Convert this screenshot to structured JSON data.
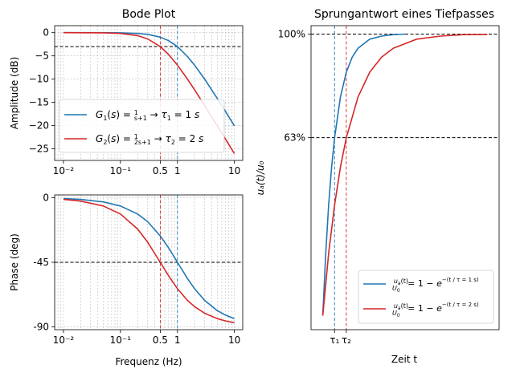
{
  "chart_data": [
    {
      "id": "amp",
      "type": "line",
      "title": "Bode Plot",
      "xlabel": "",
      "ylabel": "Amplitude (dB)",
      "xscale": "log",
      "xlim": [
        0.007,
        14
      ],
      "ylim": [
        -27.5,
        1.5
      ],
      "xtick_labels": [
        {
          "v": 0.01,
          "label": "10⁻²"
        },
        {
          "v": 0.1,
          "label": "10⁻¹"
        },
        {
          "v": 0.5,
          "label": "0.5"
        },
        {
          "v": 1,
          "label": "1"
        },
        {
          "v": 10,
          "label": "10"
        }
      ],
      "ytick_labels": [
        {
          "v": 0,
          "label": "0"
        },
        {
          "v": -5,
          "label": "−5"
        },
        {
          "v": -10,
          "label": "−10"
        },
        {
          "v": -15,
          "label": "−15"
        },
        {
          "v": -20,
          "label": "−20"
        },
        {
          "v": -25,
          "label": "−25"
        }
      ],
      "grid": true,
      "hlines": [
        {
          "y": -3,
          "color": "#000000"
        }
      ],
      "vlines": [
        {
          "x": 1,
          "color": "#1f77b4"
        },
        {
          "x": 0.5,
          "color": "#d62728"
        }
      ],
      "legend_position": "lower-left",
      "series": [
        {
          "name": "G1(s) = 1/(s+1) → τ1 = 1 s",
          "color": "#1f77b4",
          "x": [
            0.01,
            0.02,
            0.05,
            0.1,
            0.2,
            0.3,
            0.5,
            0.7,
            1,
            1.5,
            2,
            3,
            5,
            7,
            10
          ],
          "y": [
            0.0,
            0.0,
            -0.01,
            -0.04,
            -0.17,
            -0.37,
            -0.97,
            -1.73,
            -3.01,
            -5.12,
            -6.99,
            -10.0,
            -14.15,
            -17.0,
            -20.04
          ]
        },
        {
          "name": "G2(s) = 1/(2s+1) → τ2 = 2 s",
          "color": "#d62728",
          "x": [
            0.01,
            0.02,
            0.05,
            0.1,
            0.2,
            0.3,
            0.5,
            0.7,
            1,
            1.5,
            2,
            3,
            5,
            7,
            10
          ],
          "y": [
            0.0,
            -0.02,
            -0.04,
            -0.17,
            -0.64,
            -1.34,
            -3.01,
            -4.72,
            -6.99,
            -10.0,
            -12.3,
            -15.68,
            -20.04,
            -22.94,
            -26.03
          ]
        }
      ]
    },
    {
      "id": "phase",
      "type": "line",
      "title": "",
      "xlabel": "Frequenz (Hz)",
      "ylabel": "Phase (deg)",
      "xscale": "log",
      "xlim": [
        0.007,
        14
      ],
      "ylim": [
        -92,
        2
      ],
      "xtick_labels": [
        {
          "v": 0.01,
          "label": "10⁻²"
        },
        {
          "v": 0.1,
          "label": "10⁻¹"
        },
        {
          "v": 0.5,
          "label": "0.5"
        },
        {
          "v": 1,
          "label": "1"
        },
        {
          "v": 10,
          "label": "10"
        }
      ],
      "ytick_labels": [
        {
          "v": 0,
          "label": "0"
        },
        {
          "v": -45,
          "label": "-45"
        },
        {
          "v": -90,
          "label": "-90"
        }
      ],
      "grid": true,
      "hlines": [
        {
          "y": -45,
          "color": "#000000"
        }
      ],
      "vlines": [
        {
          "x": 1,
          "color": "#1f77b4"
        },
        {
          "x": 0.5,
          "color": "#d62728"
        }
      ],
      "series": [
        {
          "name": "G1",
          "color": "#1f77b4",
          "x": [
            0.01,
            0.02,
            0.05,
            0.1,
            0.2,
            0.3,
            0.5,
            0.7,
            1,
            1.5,
            2,
            3,
            5,
            7,
            10
          ],
          "y": [
            -0.57,
            -1.15,
            -2.86,
            -5.71,
            -11.31,
            -16.7,
            -26.57,
            -34.99,
            -45.0,
            -56.31,
            -63.43,
            -71.57,
            -78.69,
            -81.87,
            -84.29
          ]
        },
        {
          "name": "G2",
          "color": "#d62728",
          "x": [
            0.01,
            0.02,
            0.05,
            0.1,
            0.2,
            0.3,
            0.5,
            0.7,
            1,
            1.5,
            2,
            3,
            5,
            7,
            10
          ],
          "y": [
            -1.15,
            -2.29,
            -5.71,
            -11.31,
            -21.8,
            -30.96,
            -45.0,
            -54.46,
            -63.43,
            -71.57,
            -75.96,
            -80.54,
            -84.29,
            -85.91,
            -87.14
          ]
        }
      ]
    },
    {
      "id": "step",
      "type": "line",
      "title": "Sprungantwort eines Tiefpasses",
      "xlabel": "Zeit t",
      "ylabel": "uₐ(t)/u₀",
      "xlim": [
        -1,
        15
      ],
      "ylim": [
        -0.05,
        1.03
      ],
      "xtick_labels": [
        {
          "v": 1,
          "label": "τ₁"
        },
        {
          "v": 2,
          "label": "τ₂"
        }
      ],
      "ytick_labels": [
        {
          "v": 0.632,
          "label": "63%"
        },
        {
          "v": 1.0,
          "label": "100%"
        }
      ],
      "grid": false,
      "hlines": [
        {
          "y": 1.0,
          "color": "#000000"
        },
        {
          "y": 0.632,
          "color": "#000000"
        }
      ],
      "vlines": [
        {
          "x": 1,
          "color": "#1f77b4"
        },
        {
          "x": 2,
          "color": "#d62728"
        }
      ],
      "legend_position": "lower-right",
      "series": [
        {
          "name": "ua(t)/u0 = 1 − e^(−t/(τ = 1 s))",
          "color": "#1f77b4",
          "x": [
            0,
            0.25,
            0.5,
            0.75,
            1,
            1.5,
            2,
            2.5,
            3,
            4,
            5,
            6,
            7
          ],
          "y": [
            0.0,
            0.221,
            0.393,
            0.528,
            0.632,
            0.777,
            0.865,
            0.918,
            0.95,
            0.982,
            0.993,
            0.998,
            1.0
          ]
        },
        {
          "name": "ua(t)/u0 = 1 − e^(−t/(τ = 2 s))",
          "color": "#d62728",
          "x": [
            0,
            0.5,
            1,
            1.5,
            2,
            3,
            4,
            5,
            6,
            8,
            10,
            12,
            14
          ],
          "y": [
            0.0,
            0.221,
            0.393,
            0.528,
            0.632,
            0.777,
            0.865,
            0.918,
            0.95,
            0.982,
            0.993,
            0.998,
            0.999
          ]
        }
      ]
    }
  ]
}
